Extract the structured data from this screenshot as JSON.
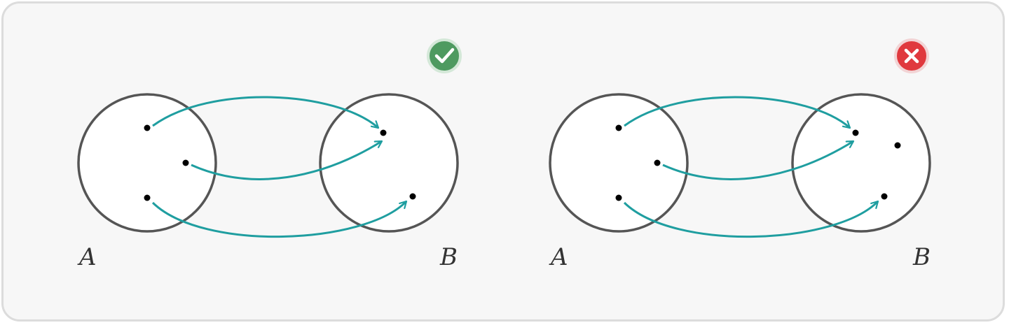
{
  "colors": {
    "panel_bg": "#f7f7f7",
    "panel_border": "#dcdcdc",
    "circle_stroke": "#555555",
    "circle_fill": "#ffffff",
    "arrow": "#1f9ea0",
    "dot": "#000000",
    "check_badge": "#4e9a60",
    "cross_badge": "#e0393e"
  },
  "diagrams": [
    {
      "status": "valid",
      "badge_icon": "check-icon",
      "domain_label": "A",
      "codomain_label": "B",
      "domain_elements": 3,
      "codomain_elements": 2,
      "mappings": [
        [
          1,
          1
        ],
        [
          2,
          1
        ],
        [
          3,
          2
        ]
      ]
    },
    {
      "status": "invalid",
      "badge_icon": "cross-icon",
      "domain_label": "A",
      "codomain_label": "B",
      "domain_elements": 3,
      "codomain_elements": 3,
      "mappings": [
        [
          1,
          1
        ],
        [
          2,
          1
        ],
        [
          3,
          3
        ]
      ]
    }
  ]
}
